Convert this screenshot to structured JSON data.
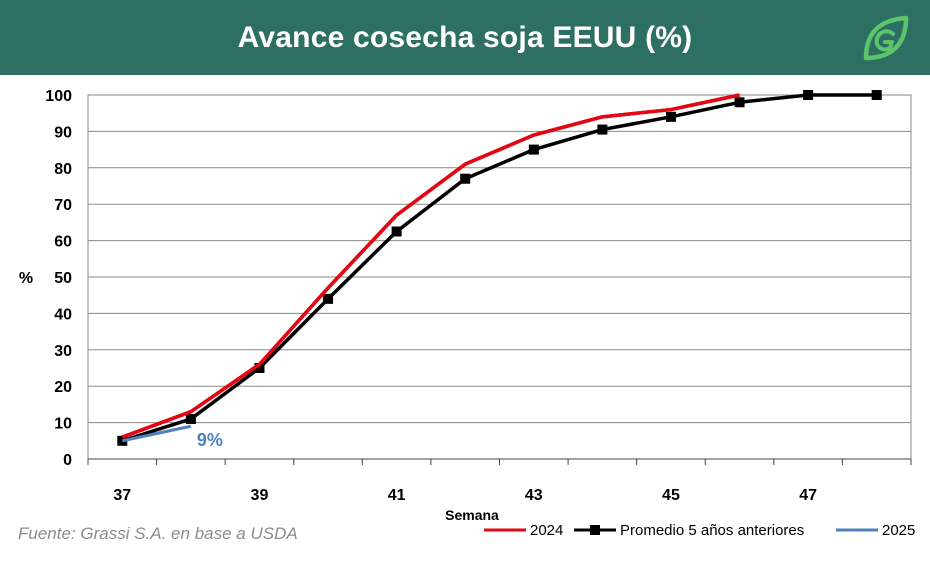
{
  "header": {
    "title": "Avance cosecha soja EEUU (%)",
    "logo_icon": "grassi-leaf-icon",
    "background_color": "#2e6f63"
  },
  "source": "Fuente: Grassi S.A. en base a USDA",
  "chart_data": {
    "type": "line",
    "title": "Avance cosecha soja EEUU (%)",
    "xlabel": "Semana",
    "ylabel": "%",
    "xlim": [
      37,
      48
    ],
    "ylim": [
      0,
      100
    ],
    "x_ticks": [
      37,
      39,
      41,
      43,
      45,
      47
    ],
    "y_ticks": [
      0,
      10,
      20,
      30,
      40,
      50,
      60,
      70,
      80,
      90,
      100
    ],
    "grid": "horizontal",
    "legend_position": "bottom-right",
    "series": [
      {
        "name": "2024",
        "color": "#e30613",
        "marker": "none",
        "x": [
          37,
          38,
          39,
          40,
          41,
          42,
          43,
          44,
          45,
          46
        ],
        "y": [
          6,
          13,
          26,
          47,
          67,
          81,
          89,
          94,
          96,
          100
        ]
      },
      {
        "name": "Promedio 5 años anteriores",
        "color": "#000000",
        "marker": "square",
        "x": [
          37,
          38,
          39,
          40,
          41,
          42,
          43,
          44,
          45,
          46,
          47,
          48
        ],
        "y": [
          5,
          11,
          25,
          44,
          62.5,
          77,
          85,
          90.5,
          94,
          98,
          100,
          100
        ]
      },
      {
        "name": "2025",
        "color": "#4f81bd",
        "marker": "none",
        "x": [
          37,
          38
        ],
        "y": [
          5,
          9
        ]
      }
    ],
    "annotations": [
      {
        "text": "9%",
        "x": 38,
        "y": 9,
        "color": "#4f81bd"
      }
    ]
  }
}
